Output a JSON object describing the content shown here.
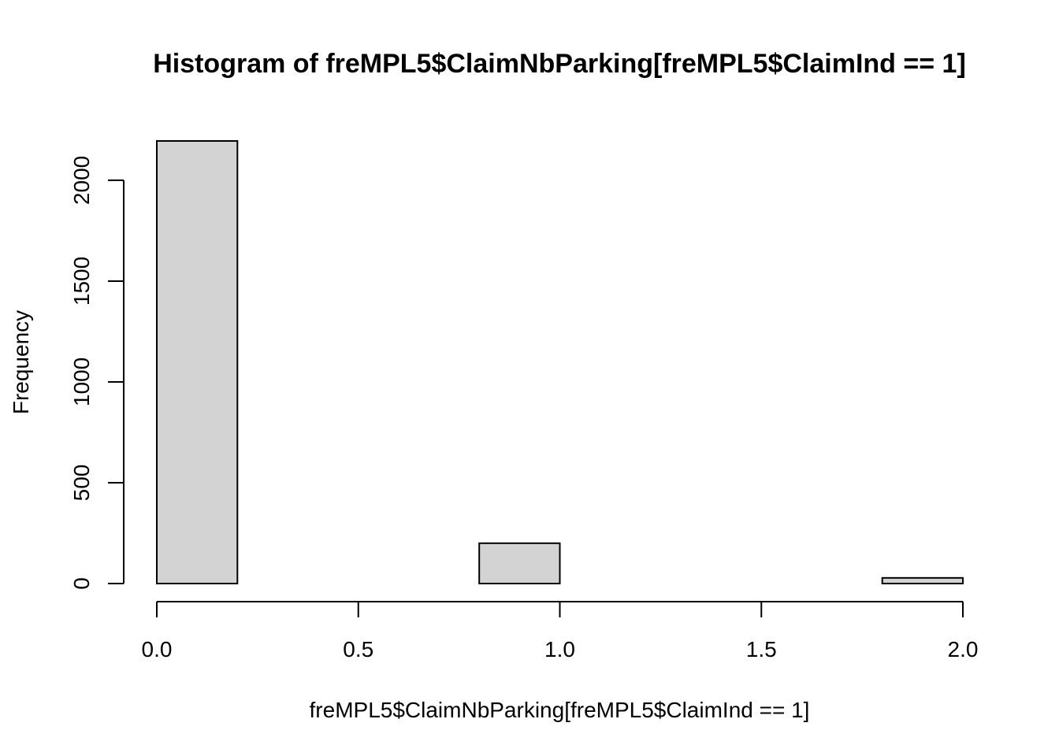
{
  "chart_data": {
    "type": "bar",
    "title": "Histogram of freMPL5$ClaimNbParking[freMPL5$ClaimInd == 1]",
    "xlabel": "freMPL5$ClaimNbParking[freMPL5$ClaimInd == 1]",
    "ylabel": "Frequency",
    "bins": [
      {
        "x0": 0.0,
        "x1": 0.2,
        "count": 2195
      },
      {
        "x0": 0.2,
        "x1": 0.4,
        "count": 0
      },
      {
        "x0": 0.4,
        "x1": 0.6,
        "count": 0
      },
      {
        "x0": 0.6,
        "x1": 0.8,
        "count": 0
      },
      {
        "x0": 0.8,
        "x1": 1.0,
        "count": 200
      },
      {
        "x0": 1.0,
        "x1": 1.2,
        "count": 0
      },
      {
        "x0": 1.2,
        "x1": 1.4,
        "count": 0
      },
      {
        "x0": 1.4,
        "x1": 1.6,
        "count": 0
      },
      {
        "x0": 1.6,
        "x1": 1.8,
        "count": 0
      },
      {
        "x0": 1.8,
        "x1": 2.0,
        "count": 28
      }
    ],
    "xlim": [
      0.0,
      2.0
    ],
    "ylim": [
      0,
      2195
    ],
    "x_ticks": [
      0.0,
      0.5,
      1.0,
      1.5,
      2.0
    ],
    "x_tick_labels": [
      "0.0",
      "0.5",
      "1.0",
      "1.5",
      "2.0"
    ],
    "y_ticks": [
      0,
      500,
      1000,
      1500,
      2000
    ],
    "y_tick_labels": [
      "0",
      "500",
      "1000",
      "1500",
      "2000"
    ],
    "bar_color": "#d3d3d3",
    "grid": false,
    "legend": "none"
  }
}
